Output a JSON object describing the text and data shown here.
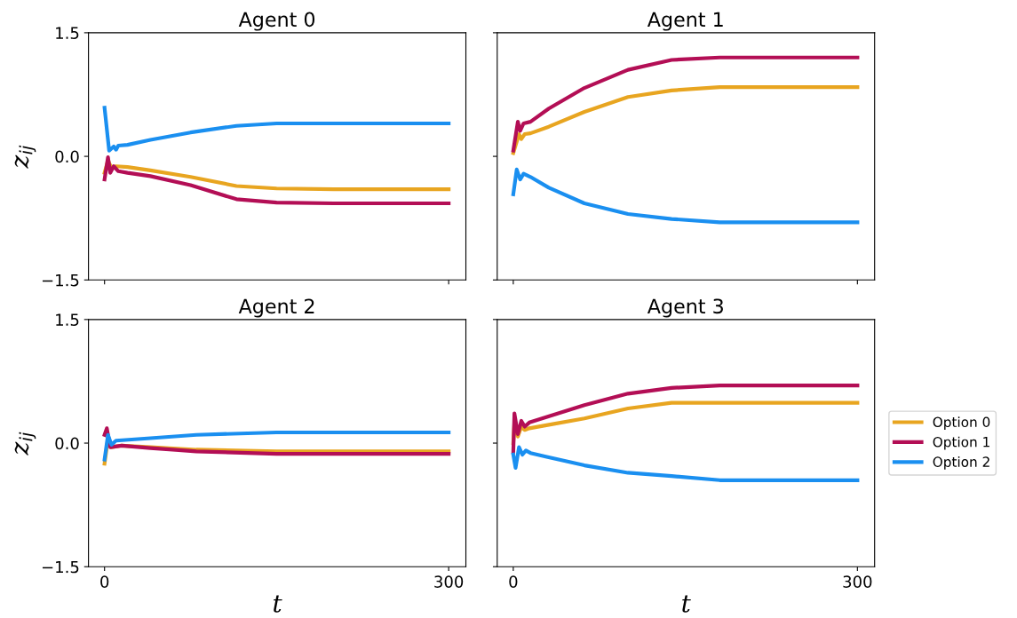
{
  "chart_data": [
    {
      "type": "line",
      "title": "Agent 0",
      "ylabel": "z$_{ij}$",
      "xlim": [
        -14,
        315
      ],
      "ylim": [
        -1.5,
        1.5
      ],
      "xticks": [
        0,
        300
      ],
      "yticks": [
        {
          "value": -1.5,
          "label": "−1.5"
        },
        {
          "value": 0,
          "label": "0.0"
        },
        {
          "value": 1.5,
          "label": "1.5"
        }
      ],
      "tick_labels": "y",
      "grid": false,
      "legend": false,
      "series": [
        {
          "color": "#e8a520",
          "x": [
            0,
            3,
            6,
            10,
            20,
            40,
            75,
            115,
            150,
            200,
            300
          ],
          "values": [
            -0.2,
            -0.05,
            -0.14,
            -0.12,
            -0.13,
            -0.17,
            -0.25,
            -0.36,
            -0.39,
            -0.4,
            -0.4
          ]
        },
        {
          "color": "#b30e55",
          "x": [
            0,
            3,
            5,
            8,
            12,
            20,
            40,
            75,
            115,
            150,
            200,
            300
          ],
          "values": [
            -0.28,
            -0.01,
            -0.2,
            -0.12,
            -0.18,
            -0.2,
            -0.24,
            -0.35,
            -0.52,
            -0.56,
            -0.57,
            -0.57
          ]
        },
        {
          "color": "#1a8ff0",
          "x": [
            0,
            4,
            8,
            10,
            12,
            20,
            40,
            75,
            115,
            150,
            200,
            300
          ],
          "values": [
            0.59,
            0.07,
            0.12,
            0.08,
            0.13,
            0.14,
            0.2,
            0.29,
            0.37,
            0.4,
            0.4,
            0.4
          ]
        }
      ]
    },
    {
      "type": "line",
      "title": "Agent 1",
      "xlim": [
        -14,
        315
      ],
      "ylim": [
        -1.5,
        1.5
      ],
      "xticks": [
        0,
        300
      ],
      "yticks": [
        {
          "value": -1.5,
          "label": null
        },
        {
          "value": 0,
          "label": null
        },
        {
          "value": 1.5,
          "label": null
        }
      ],
      "tick_labels": false,
      "grid": false,
      "legend": false,
      "series": [
        {
          "color": "#e8a520",
          "x": [
            0,
            5,
            7,
            10,
            15,
            31,
            62,
            100,
            138,
            180,
            300
          ],
          "values": [
            0.04,
            0.27,
            0.21,
            0.27,
            0.28,
            0.36,
            0.54,
            0.72,
            0.8,
            0.84,
            0.84
          ]
        },
        {
          "color": "#b30e55",
          "x": [
            0,
            4,
            6,
            9,
            15,
            31,
            62,
            100,
            138,
            180,
            300
          ],
          "values": [
            0.07,
            0.42,
            0.31,
            0.4,
            0.42,
            0.58,
            0.83,
            1.05,
            1.17,
            1.2,
            1.2
          ]
        },
        {
          "color": "#1a8ff0",
          "x": [
            0,
            3,
            6,
            9,
            15,
            31,
            62,
            100,
            138,
            180,
            300
          ],
          "values": [
            -0.46,
            -0.16,
            -0.28,
            -0.21,
            -0.25,
            -0.38,
            -0.57,
            -0.7,
            -0.76,
            -0.8,
            -0.8
          ]
        }
      ]
    },
    {
      "type": "line",
      "title": "Agent 2",
      "xlabel": "t",
      "ylabel": "z$_{ij}$",
      "xlim": [
        -14,
        315
      ],
      "ylim": [
        -1.5,
        1.5
      ],
      "xticks": [
        0,
        300
      ],
      "yticks": [
        {
          "value": -1.5,
          "label": "−1.5"
        },
        {
          "value": 0,
          "label": "0.0"
        },
        {
          "value": 1.5,
          "label": "1.5"
        }
      ],
      "grid": false,
      "legend": false,
      "series": [
        {
          "color": "#e8a520",
          "x": [
            0,
            3,
            6,
            15,
            40,
            80,
            150,
            300
          ],
          "values": [
            -0.25,
            0.05,
            -0.05,
            -0.03,
            -0.05,
            -0.08,
            -0.1,
            -0.1
          ]
        },
        {
          "color": "#b30e55",
          "x": [
            0,
            2,
            5,
            15,
            40,
            80,
            150,
            300
          ],
          "values": [
            0.1,
            0.18,
            -0.05,
            -0.03,
            -0.06,
            -0.1,
            -0.13,
            -0.13
          ]
        },
        {
          "color": "#1a8ff0",
          "x": [
            0,
            3,
            6,
            10,
            40,
            80,
            150,
            300
          ],
          "values": [
            -0.2,
            0.1,
            -0.02,
            0.03,
            0.06,
            0.1,
            0.13,
            0.13
          ]
        }
      ]
    },
    {
      "type": "line",
      "title": "Agent 3",
      "xlabel": "t",
      "xlim": [
        -14,
        315
      ],
      "ylim": [
        -1.5,
        1.5
      ],
      "xticks": [
        0,
        300
      ],
      "yticks": [
        {
          "value": -1.5,
          "label": null
        },
        {
          "value": 0,
          "label": null
        },
        {
          "value": 1.5,
          "label": null
        }
      ],
      "tick_labels": "x",
      "grid": false,
      "legend": "right",
      "series": [
        {
          "name": "Option 0",
          "color": "#e8a520",
          "x": [
            0,
            1,
            4,
            7,
            10,
            14,
            30,
            62,
            100,
            138,
            180,
            300
          ],
          "values": [
            0.0,
            0.25,
            0.08,
            0.2,
            0.16,
            0.18,
            0.22,
            0.3,
            0.42,
            0.49,
            0.49,
            0.49
          ]
        },
        {
          "name": "Option 1",
          "color": "#b30e55",
          "x": [
            0,
            1,
            4,
            7,
            10,
            14,
            30,
            62,
            100,
            138,
            180,
            300
          ],
          "values": [
            -0.11,
            0.36,
            0.11,
            0.27,
            0.2,
            0.25,
            0.32,
            0.46,
            0.6,
            0.67,
            0.7,
            0.7
          ]
        },
        {
          "name": "Option 2",
          "color": "#1a8ff0",
          "x": [
            0,
            2,
            5,
            8,
            11,
            15,
            30,
            62,
            100,
            138,
            180,
            300
          ],
          "values": [
            -0.14,
            -0.3,
            -0.05,
            -0.14,
            -0.09,
            -0.12,
            -0.17,
            -0.27,
            -0.36,
            -0.4,
            -0.45,
            -0.45
          ]
        }
      ]
    }
  ]
}
